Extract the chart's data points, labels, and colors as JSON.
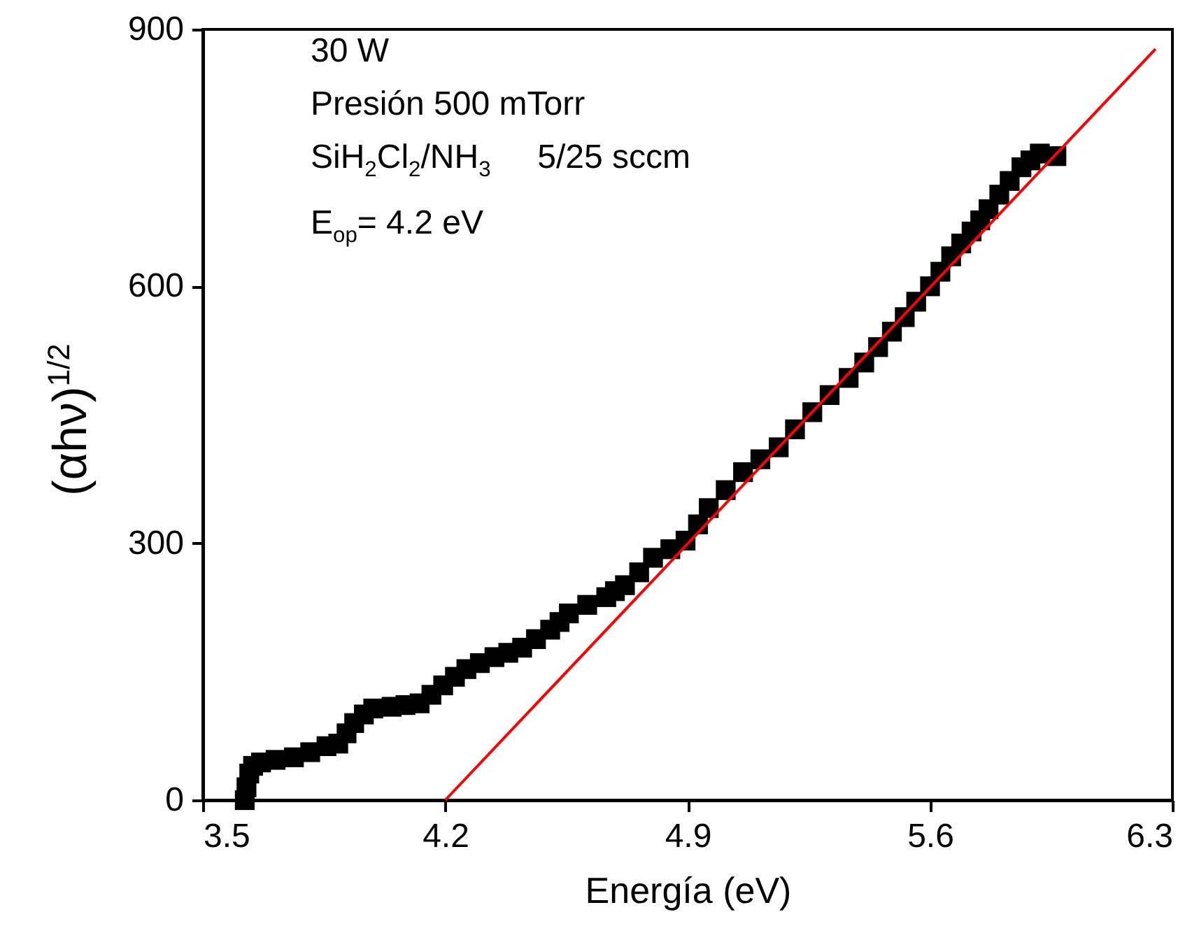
{
  "chart_data": {
    "type": "scatter",
    "xlabel": "Energía (eV)",
    "ylabel": "(αhν)$^{1/2}$",
    "annotations": [
      "30 W",
      "Presión 500 mTorr",
      "SiH$_{2}$Cl$_{2}$/NH$_{3}$     5/25 sccm",
      "E$_{op}$= 4.2 eV"
    ],
    "xlim": [
      3.5,
      6.3
    ],
    "xticks": [
      3.5,
      4.2,
      4.9,
      5.6,
      6.3
    ],
    "ylim": [
      0,
      900
    ],
    "yticks": [
      0,
      300,
      600,
      900
    ],
    "series": [
      {
        "marker": "square",
        "color": "#000000",
        "x": [
          3.621,
          3.626,
          3.634,
          3.645,
          3.668,
          3.71,
          3.763,
          3.81,
          3.857,
          3.891,
          3.915,
          3.937,
          3.965,
          3.992,
          4.045,
          4.085,
          4.126,
          4.16,
          4.194,
          4.228,
          4.261,
          4.3,
          4.342,
          4.382,
          4.422,
          4.462,
          4.503,
          4.53,
          4.557,
          4.61,
          4.665,
          4.69,
          4.719,
          4.76,
          4.8,
          4.85,
          4.894,
          4.93,
          4.961,
          5.01,
          5.06,
          5.11,
          5.163,
          5.21,
          5.26,
          5.31,
          5.365,
          5.41,
          5.45,
          5.49,
          5.527,
          5.56,
          5.6,
          5.63,
          5.661,
          5.69,
          5.72,
          5.745,
          5.769,
          5.8,
          5.83,
          5.864,
          5.89,
          5.917,
          5.965
        ],
        "values": [
          0,
          15,
          31,
          40,
          44,
          47,
          50,
          56,
          63,
          66,
          78,
          90,
          100,
          107,
          109,
          111,
          113,
          123,
          134,
          144,
          153,
          160,
          167,
          172,
          178,
          188,
          199,
          208,
          218,
          228,
          237,
          244,
          251,
          266,
          283,
          293,
          303,
          322,
          341,
          362,
          383,
          398,
          412,
          433,
          453,
          473,
          493,
          511,
          529,
          547,
          564,
          582,
          600,
          617,
          635,
          650,
          664,
          677,
          690,
          707,
          723,
          739,
          747,
          755,
          752
        ]
      },
      {
        "type": "line",
        "color": "#ff0000",
        "x": [
          4.2,
          6.251
        ],
        "values": [
          0,
          877
        ]
      }
    ]
  }
}
